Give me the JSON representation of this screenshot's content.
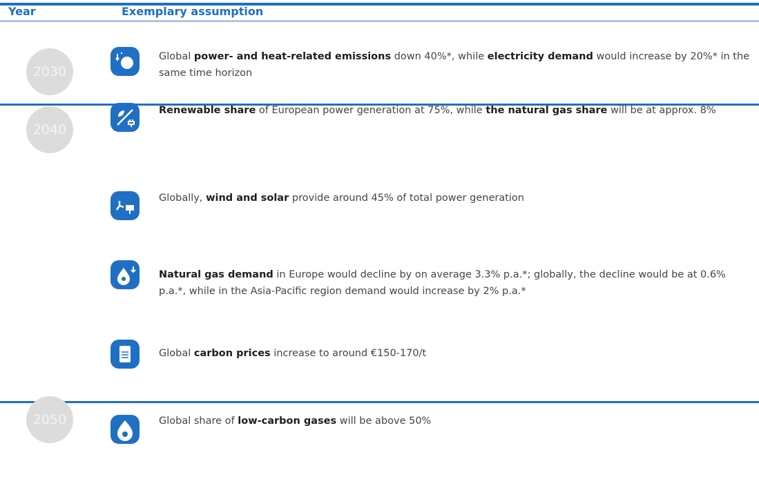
{
  "header": {
    "year": "Year",
    "assumption": "Exemplary assumption"
  },
  "rows": [
    {
      "year": "2030",
      "items": [
        {
          "segments": [
            {
              "text": "Global ",
              "bold": false
            },
            {
              "text": "power- and heat-related emissions",
              "bold": true
            },
            {
              "text": " down 40%*, while ",
              "bold": false
            },
            {
              "text": "electricity demand",
              "bold": true
            },
            {
              "text": " would increase by 20%* in the same time horizon",
              "bold": false
            }
          ]
        }
      ]
    },
    {
      "year": "2040",
      "items": [
        {
          "segments": [
            {
              "text": "Renewable share",
              "bold": true
            },
            {
              "text": " of European power generation at 75%, while ",
              "bold": false
            },
            {
              "text": "the natural gas share",
              "bold": true
            },
            {
              "text": " will be at approx. 8%",
              "bold": false
            }
          ]
        },
        {
          "segments": [
            {
              "text": "Globally, ",
              "bold": false
            },
            {
              "text": "wind and solar",
              "bold": true
            },
            {
              "text": " provide around 45% of total power generation",
              "bold": false
            }
          ]
        },
        {
          "segments": [
            {
              "text": "Natural gas demand",
              "bold": true
            },
            {
              "text": " in Europe would decline by on average 3.3% p.a.*; globally, the decline would be at 0.6% p.a.*, while in the Asia-Pacific region demand would increase by 2% p.a.*",
              "bold": false
            }
          ]
        },
        {
          "segments": [
            {
              "text": "Global ",
              "bold": false
            },
            {
              "text": "carbon prices",
              "bold": true
            },
            {
              "text": " increase to around €150-170/t",
              "bold": false
            }
          ]
        }
      ]
    },
    {
      "year": "2050",
      "items": [
        {
          "segments": [
            {
              "text": "Global share of ",
              "bold": false
            },
            {
              "text": "low-carbon gases",
              "bold": true
            },
            {
              "text": " will be above 50%",
              "bold": false
            }
          ]
        }
      ]
    }
  ]
}
